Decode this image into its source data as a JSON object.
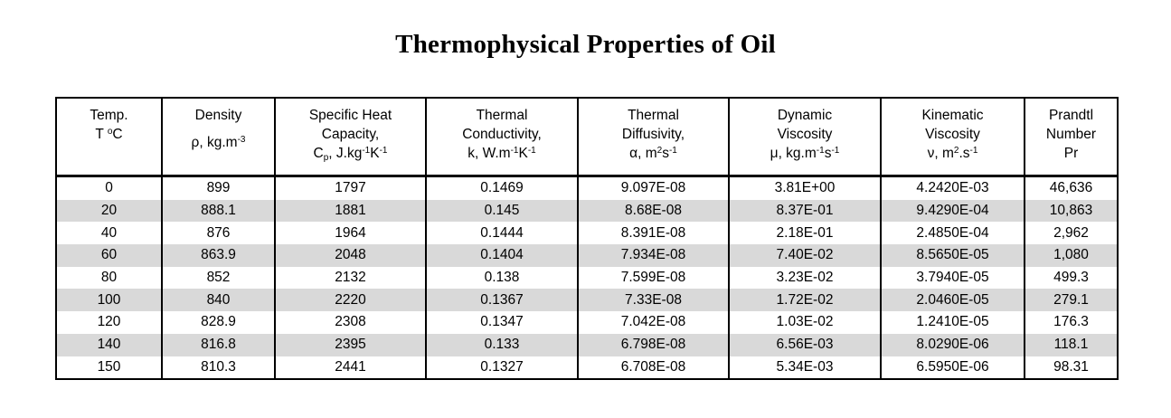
{
  "title": "Thermophysical Properties of Oil",
  "table": {
    "columns": [
      {
        "id": "temperature",
        "lines": [
          "Temp.",
          "T ^{o}C"
        ]
      },
      {
        "id": "density",
        "lines": [
          "Density",
          "ρ, kg.m^{-3}"
        ]
      },
      {
        "id": "specific-heat-capacity",
        "lines": [
          "Specific Heat",
          "Capacity,",
          "C_{p}, J.kg^{-1}K^{-1}"
        ]
      },
      {
        "id": "thermal-conductivity",
        "lines": [
          "Thermal",
          "Conductivity,",
          "k, W.m^{-1}K^{-1}"
        ]
      },
      {
        "id": "thermal-diffusivity",
        "lines": [
          "Thermal",
          "Diffusivity,",
          "α, m^{2}s^{-1}"
        ]
      },
      {
        "id": "dynamic-viscosity",
        "lines": [
          "Dynamic",
          "Viscosity",
          "μ, kg.m^{-1}s^{-1}"
        ]
      },
      {
        "id": "kinematic-viscosity",
        "lines": [
          "Kinematic",
          "Viscosity",
          "ν, m^{2}.s^{-1}"
        ]
      },
      {
        "id": "prandtl-number",
        "lines": [
          "Prandtl",
          "Number",
          "Pr"
        ]
      }
    ],
    "rows": [
      [
        "0",
        "899",
        "1797",
        "0.1469",
        "9.097E-08",
        "3.81E+00",
        "4.2420E-03",
        "46,636"
      ],
      [
        "20",
        "888.1",
        "1881",
        "0.145",
        "8.68E-08",
        "8.37E-01",
        "9.4290E-04",
        "10,863"
      ],
      [
        "40",
        "876",
        "1964",
        "0.1444",
        "8.391E-08",
        "2.18E-01",
        "2.4850E-04",
        "2,962"
      ],
      [
        "60",
        "863.9",
        "2048",
        "0.1404",
        "7.934E-08",
        "7.40E-02",
        "8.5650E-05",
        "1,080"
      ],
      [
        "80",
        "852",
        "2132",
        "0.138",
        "7.599E-08",
        "3.23E-02",
        "3.7940E-05",
        "499.3"
      ],
      [
        "100",
        "840",
        "2220",
        "0.1367",
        "7.33E-08",
        "1.72E-02",
        "2.0460E-05",
        "279.1"
      ],
      [
        "120",
        "828.9",
        "2308",
        "0.1347",
        "7.042E-08",
        "1.03E-02",
        "1.2410E-05",
        "176.3"
      ],
      [
        "140",
        "816.8",
        "2395",
        "0.133",
        "6.798E-08",
        "6.56E-03",
        "8.0290E-06",
        "118.1"
      ],
      [
        "150",
        "810.3",
        "2441",
        "0.1327",
        "6.708E-08",
        "5.34E-03",
        "6.5950E-06",
        "98.31"
      ]
    ],
    "colors": {
      "row_banding": "#d9d9d9",
      "border": "#000000",
      "text": "#000000",
      "background": "#ffffff"
    }
  }
}
